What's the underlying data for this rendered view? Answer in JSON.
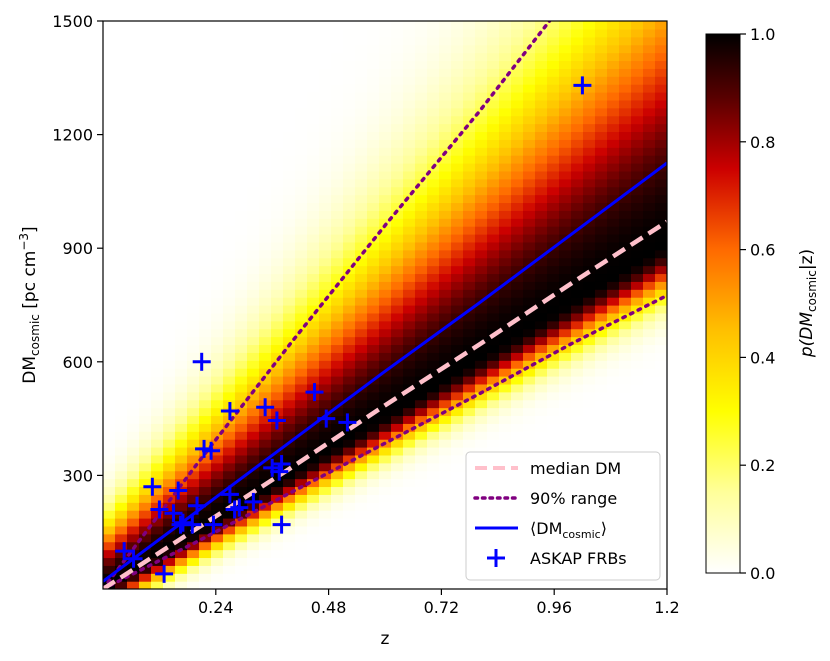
{
  "chart_data": {
    "type": "heatmap",
    "title": "",
    "xlabel": "z",
    "ylabel_main": "DM",
    "ylabel_sub": "cosmic",
    "ylabel_units_prefix": " [pc cm",
    "ylabel_units_exp": "−3",
    "ylabel_units_suffix": "]",
    "xlim": [
      0.0,
      1.2
    ],
    "ylim": [
      0,
      1500
    ],
    "xticks": [
      0.24,
      0.48,
      0.72,
      0.96,
      1.2
    ],
    "xtick_labels": [
      "0.24",
      "0.48",
      "0.72",
      "0.96",
      "1.2"
    ],
    "yticks": [
      300,
      600,
      900,
      1200,
      1500
    ],
    "ytick_labels": [
      "300",
      "600",
      "900",
      "1200",
      "1500"
    ],
    "colorbar": {
      "label_prefix": "p(DM",
      "label_sub": "cosmic",
      "label_suffix": "|z)",
      "range": [
        0.0,
        1.0
      ],
      "ticks": [
        0.0,
        0.2,
        0.4,
        0.6,
        0.8,
        1.0
      ],
      "tick_labels": [
        "0.0",
        "0.2",
        "0.4",
        "0.6",
        "0.8",
        "1.0"
      ],
      "colormap": "afmhot_r"
    },
    "density_band": {
      "peak_slope_dm_per_z": 760,
      "peak_curvature": 0.0,
      "min_z": 0.01
    },
    "series": [
      {
        "name": "median DM",
        "style": "dashed",
        "color": "#ffc0cb",
        "x": [
          0.0,
          0.2,
          0.4,
          0.6,
          0.8,
          1.0,
          1.2
        ],
        "y": [
          0,
          160,
          320,
          485,
          645,
          810,
          970
        ]
      },
      {
        "name": "90% range",
        "style": "dotted",
        "color": "#800080",
        "x": [
          0.0,
          0.2,
          0.4,
          0.6,
          0.8,
          0.95
        ],
        "y": [
          0,
          330,
          650,
          960,
          1260,
          1500
        ]
      },
      {
        "name": "90% range lower",
        "style": "dotted",
        "color": "#800080",
        "x": [
          0.0,
          0.2,
          0.4,
          0.6,
          0.8,
          1.0,
          1.2
        ],
        "y": [
          0,
          125,
          255,
          385,
          515,
          650,
          775
        ]
      },
      {
        "name": "mean DM",
        "style": "solid",
        "color": "#0000ff",
        "x": [
          0.0,
          0.2,
          0.4,
          0.6,
          0.8,
          1.0,
          1.2
        ],
        "y": [
          20,
          205,
          390,
          575,
          755,
          940,
          1125
        ]
      }
    ],
    "legend": {
      "placement": "lower-right",
      "entries": [
        {
          "label": "median DM",
          "style": "dashed",
          "color": "#ffc0cb"
        },
        {
          "label": "90% range",
          "style": "dotted",
          "color": "#800080"
        },
        {
          "label_prefix": "⟨DM",
          "label_sub": "cosmic",
          "label_suffix": "⟩",
          "style": "solid",
          "color": "#0000ff"
        },
        {
          "label": "ASKAP FRBs",
          "style": "plus",
          "color": "#0000ff"
        }
      ]
    },
    "points": {
      "name": "ASKAP FRBs",
      "marker": "plus",
      "color": "#0000ff",
      "x": [
        0.045,
        0.065,
        0.105,
        0.12,
        0.13,
        0.15,
        0.16,
        0.165,
        0.17,
        0.19,
        0.2,
        0.21,
        0.215,
        0.23,
        0.235,
        0.27,
        0.27,
        0.28,
        0.29,
        0.32,
        0.345,
        0.36,
        0.37,
        0.375,
        0.38,
        0.38,
        0.45,
        0.475,
        0.52,
        1.02
      ],
      "y": [
        100,
        80,
        270,
        210,
        40,
        200,
        260,
        170,
        175,
        170,
        220,
        600,
        370,
        365,
        170,
        470,
        250,
        210,
        215,
        230,
        480,
        320,
        445,
        310,
        330,
        170,
        520,
        450,
        440,
        1330
      ]
    }
  }
}
